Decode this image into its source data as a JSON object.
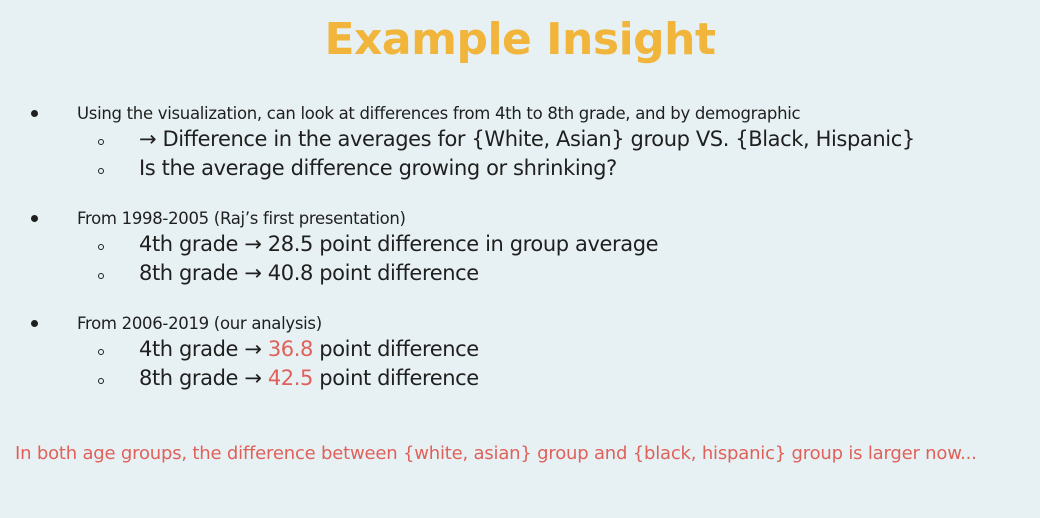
{
  "title": "Example Insight",
  "sections": [
    {
      "heading": "Using the visualization, can look at differences from 4th to 8th grade, and by demographic",
      "items": [
        "→ Difference in the averages for {White, Asian} group VS. {Black, Hispanic}",
        "Is the average difference growing or shrinking?"
      ]
    },
    {
      "heading": "From 1998-2005 (Raj’s first presentation)",
      "items": [
        "4th grade → 28.5 point difference in group average",
        "8th grade → 40.8 point difference"
      ]
    },
    {
      "heading": "From 2006-2019 (our analysis)",
      "items": [
        {
          "prefix": "4th grade → ",
          "value": "36.8",
          "suffix": " point difference"
        },
        {
          "prefix": "8th grade → ",
          "value": "42.5",
          "suffix": " point difference"
        }
      ]
    }
  ],
  "conclusion": "In both age groups, the difference between {white, asian} group and {black, hispanic} group is larger now...",
  "colors": {
    "title": "#f0b53a",
    "highlight": "#e0605a",
    "background": "#e7f1f3"
  }
}
